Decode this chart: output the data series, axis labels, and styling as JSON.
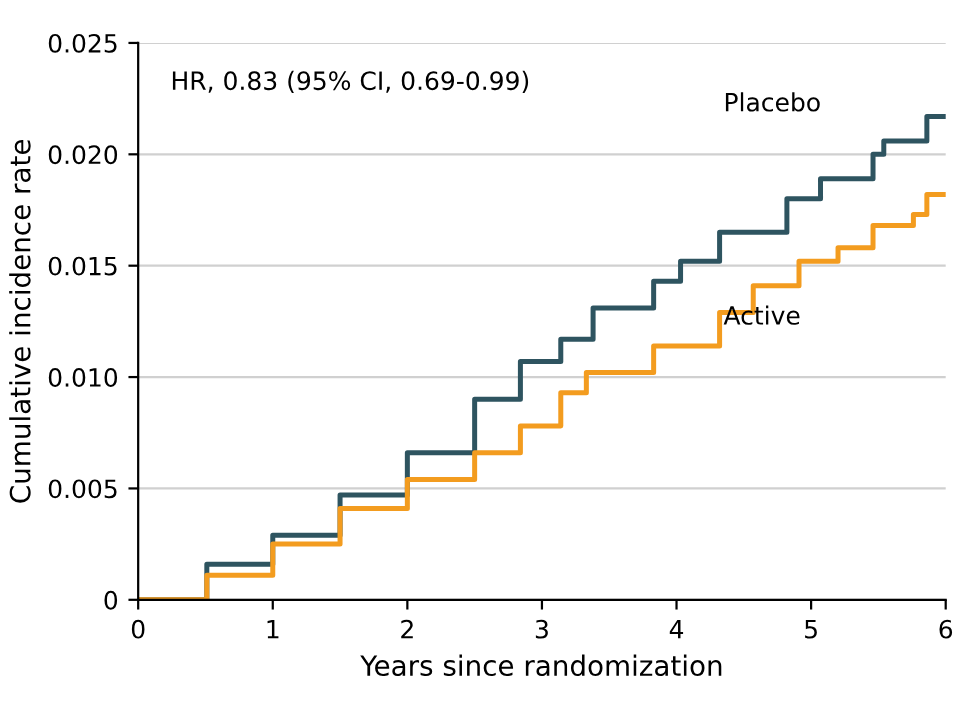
{
  "chart_data": {
    "type": "step",
    "xlabel": "Years since randomization",
    "ylabel": "Cumulative incidence rate",
    "annotations": [
      "HR, 0.83 (95% CI, 0.69-0.99)"
    ],
    "xlim": [
      0,
      6
    ],
    "ylim": [
      0,
      0.025
    ],
    "xticks": [
      0,
      1,
      2,
      3,
      4,
      5,
      6
    ],
    "yticks": [
      0,
      0.005,
      {
        "value": 0.01,
        "label": "0.010"
      },
      0.015,
      {
        "value": 0.02,
        "label": "0.020"
      },
      0.025
    ],
    "grid": "y",
    "legend": false,
    "marker": "none",
    "line_style": "solid",
    "series": [
      {
        "name": "Placebo",
        "color": "#2e5460",
        "x": [
          0,
          0.51,
          1.0,
          1.5,
          2.0,
          2.5,
          2.84,
          3.14,
          3.38,
          3.83,
          4.03,
          4.32,
          4.82,
          5.07,
          5.46,
          5.54,
          5.86,
          6.0
        ],
        "values": [
          0,
          0.0016,
          0.0029,
          0.0047,
          0.0066,
          0.009,
          0.0107,
          0.0117,
          0.0131,
          0.0143,
          0.0152,
          0.0165,
          0.018,
          0.0189,
          0.02,
          0.0206,
          0.0217,
          0.0217
        ]
      },
      {
        "name": "Active",
        "color": "#f39c1f",
        "x": [
          0,
          0.51,
          1.0,
          1.5,
          2.0,
          2.5,
          2.84,
          3.14,
          3.33,
          3.83,
          4.32,
          4.57,
          4.91,
          5.2,
          5.46,
          5.76,
          5.86,
          6.0
        ],
        "values": [
          0,
          0.0011,
          0.0025,
          0.0041,
          0.0054,
          0.0066,
          0.0078,
          0.0093,
          0.0102,
          0.0114,
          0.0129,
          0.0141,
          0.0152,
          0.0158,
          0.0168,
          0.0173,
          0.0182,
          0.0182
        ]
      }
    ]
  }
}
